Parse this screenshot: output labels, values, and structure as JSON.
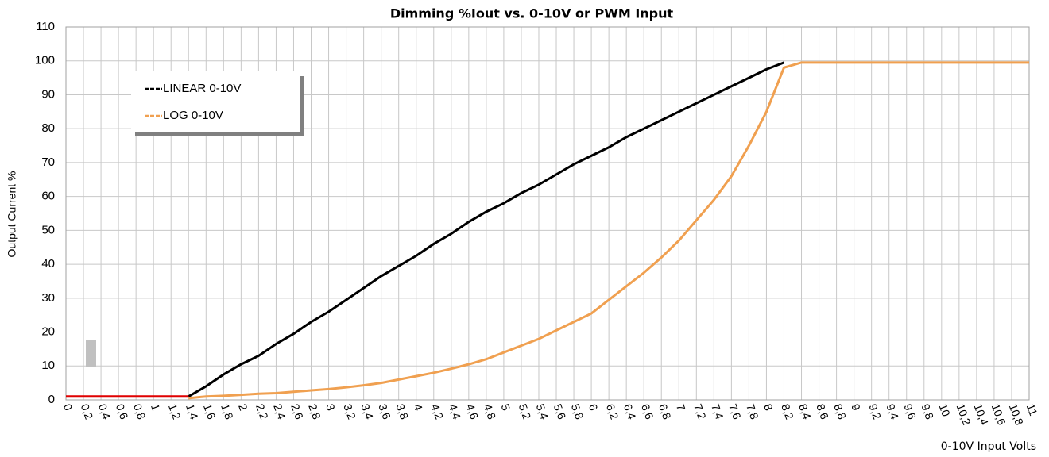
{
  "chart_data": {
    "type": "line",
    "title": "Dimming %Iout vs. 0-10V or PWM Input",
    "xlabel": "0-10V Input Volts",
    "ylabel": "Output Current %",
    "x": [
      0,
      0.2,
      0.4,
      0.6,
      0.8,
      1,
      1.2,
      1.4,
      1.6,
      1.8,
      2,
      2.2,
      2.4,
      2.6,
      2.8,
      3,
      3.2,
      3.4,
      3.6,
      3.8,
      4,
      4.2,
      4.4,
      4.6,
      4.8,
      5,
      5.2,
      5.4,
      5.6,
      5.8,
      6,
      6.2,
      6.4,
      6.6,
      6.8,
      7,
      7.2,
      7.4,
      7.6,
      7.8,
      8,
      8.2,
      8.4,
      8.6,
      8.8,
      9,
      9.2,
      9.4,
      9.6,
      9.8,
      10,
      10.2,
      10.4,
      10.6,
      10.8,
      11
    ],
    "series": [
      {
        "name": "LINEAR 0-10V",
        "color": "#000000",
        "values": [
          null,
          null,
          null,
          null,
          null,
          null,
          null,
          1,
          4,
          7.5,
          10.5,
          13,
          16.5,
          19.5,
          23,
          26,
          29.5,
          33,
          36.5,
          39.5,
          42.5,
          46,
          49,
          52.5,
          55.5,
          58,
          61,
          63.5,
          66.5,
          69.5,
          72,
          74.5,
          77.5,
          80,
          82.5,
          85,
          87.5,
          90,
          92.5,
          95,
          97.5,
          99.5,
          null,
          null,
          null,
          null,
          null,
          null,
          null,
          null,
          null,
          null,
          null,
          null,
          null,
          null
        ]
      },
      {
        "name": "LOG 0-10V",
        "color": "#f0a050",
        "values": [
          null,
          null,
          null,
          null,
          null,
          null,
          null,
          0.5,
          1,
          1.2,
          1.5,
          1.8,
          2,
          2.4,
          2.8,
          3.2,
          3.7,
          4.3,
          5,
          6,
          7,
          8,
          9.2,
          10.5,
          12,
          14,
          16,
          18,
          20.5,
          23,
          25.5,
          29.5,
          33.5,
          37.5,
          42,
          47,
          53,
          59,
          66,
          75,
          85,
          98,
          99.5,
          99.5,
          99.5,
          99.5,
          99.5,
          99.5,
          99.5,
          99.5,
          99.5,
          99.5,
          99.5,
          99.5,
          99.5,
          99.5
        ]
      },
      {
        "color": "#e00000",
        "values": [
          1,
          1,
          1,
          1,
          1,
          1,
          1,
          1,
          null,
          null,
          null,
          null,
          null,
          null,
          null,
          null,
          null,
          null,
          null,
          null,
          null,
          null,
          null,
          null,
          null,
          null,
          null,
          null,
          null,
          null,
          null,
          null,
          null,
          null,
          null,
          null,
          null,
          null,
          null,
          null,
          null,
          null,
          null,
          null,
          null,
          null,
          null,
          null,
          null,
          null,
          null,
          null,
          null,
          null,
          null,
          null
        ]
      }
    ],
    "xlim": [
      0,
      11
    ],
    "ylim": [
      0,
      110
    ],
    "yticks": [
      0,
      10,
      20,
      30,
      40,
      50,
      60,
      70,
      80,
      90,
      100,
      110
    ],
    "xticks": [
      0,
      {
        "value": 0.2,
        "label": "0,2"
      },
      {
        "value": 0.4,
        "label": "0,4"
      },
      {
        "value": 0.6,
        "label": "0,6"
      },
      {
        "value": 0.8,
        "label": "0,8"
      },
      1,
      {
        "value": 1.2,
        "label": "1,2"
      },
      {
        "value": 1.4,
        "label": "1,4"
      },
      {
        "value": 1.6,
        "label": "1,6"
      },
      {
        "value": 1.8,
        "label": "1,8"
      },
      2,
      {
        "value": 2.2,
        "label": "2,2"
      },
      {
        "value": 2.4,
        "label": "2,4"
      },
      {
        "value": 2.6,
        "label": "2,6"
      },
      {
        "value": 2.8,
        "label": "2,8"
      },
      3,
      {
        "value": 3.2,
        "label": "3,2"
      },
      {
        "value": 3.4,
        "label": "3,4"
      },
      {
        "value": 3.6,
        "label": "3,6"
      },
      {
        "value": 3.8,
        "label": "3,8"
      },
      4,
      {
        "value": 4.2,
        "label": "4,2"
      },
      {
        "value": 4.4,
        "label": "4,4"
      },
      {
        "value": 4.6,
        "label": "4,6"
      },
      {
        "value": 4.8,
        "label": "4,8"
      },
      5,
      {
        "value": 5.2,
        "label": "5,2"
      },
      {
        "value": 5.4,
        "label": "5,4"
      },
      {
        "value": 5.6,
        "label": "5,6"
      },
      {
        "value": 5.8,
        "label": "5,8"
      },
      6,
      {
        "value": 6.2,
        "label": "6,2"
      },
      {
        "value": 6.4,
        "label": "6,4"
      },
      {
        "value": 6.6,
        "label": "6,6"
      },
      {
        "value": 6.8,
        "label": "6,8"
      },
      7,
      {
        "value": 7.2,
        "label": "7,2"
      },
      {
        "value": 7.4,
        "label": "7,4"
      },
      {
        "value": 7.6,
        "label": "7,6"
      },
      {
        "value": 7.8,
        "label": "7,8"
      },
      8,
      {
        "value": 8.2,
        "label": "8,2"
      },
      {
        "value": 8.4,
        "label": "8,4"
      },
      {
        "value": 8.6,
        "label": "8,6"
      },
      {
        "value": 8.8,
        "label": "8,8"
      },
      9,
      {
        "value": 9.2,
        "label": "9,2"
      },
      {
        "value": 9.4,
        "label": "9,4"
      },
      {
        "value": 9.6,
        "label": "9,6"
      },
      {
        "value": 9.8,
        "label": "9,8"
      },
      10,
      {
        "value": 10.2,
        "label": "10,2"
      },
      {
        "value": 10.4,
        "label": "10,4"
      },
      {
        "value": 10.6,
        "label": "10,6"
      },
      {
        "value": 10.8,
        "label": "10,8"
      },
      11
    ],
    "grid": true
  }
}
